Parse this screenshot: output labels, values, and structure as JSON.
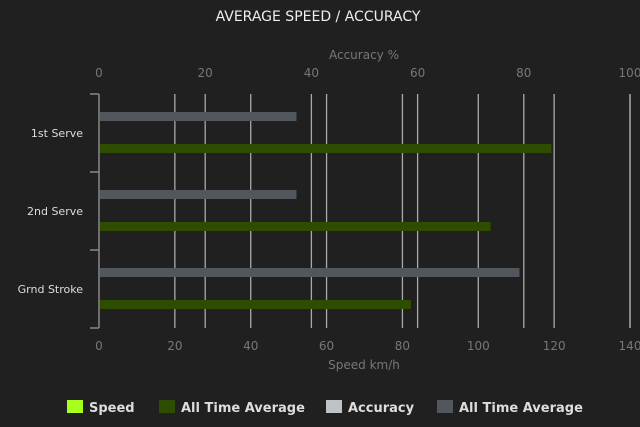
{
  "chart_data": {
    "type": "bar",
    "orientation": "horizontal",
    "title": "AVERAGE SPEED / ACCURACY",
    "top_axis": {
      "label": "Accuracy %",
      "range": [
        0,
        100
      ],
      "ticks": [
        "0",
        "20",
        "40",
        "60",
        "80",
        "100"
      ]
    },
    "bottom_axis": {
      "label": "Speed km/h",
      "range": [
        0,
        140
      ],
      "ticks": [
        "0",
        "20",
        "40",
        "60",
        "80",
        "100",
        "120",
        "140"
      ]
    },
    "categories": [
      "1st Serve",
      "2nd Serve",
      "Grnd Stroke"
    ],
    "series": [
      {
        "name": "All Time Average",
        "axis": "accuracy",
        "color": "#52565d",
        "values": [
          37,
          37,
          79
        ]
      },
      {
        "name": "All Time Average",
        "axis": "speed",
        "color": "#2f4d00",
        "values": [
          119,
          103,
          82
        ]
      }
    ],
    "legend": {
      "placement": "bottom",
      "items": [
        {
          "label": "Speed",
          "color": "#a6ff1c"
        },
        {
          "label": "All Time Average",
          "color": "#2f4d00"
        },
        {
          "label": "Accuracy",
          "color": "#c0c3c6"
        },
        {
          "label": "All Time Average",
          "color": "#52565d"
        }
      ]
    },
    "grid": true
  }
}
